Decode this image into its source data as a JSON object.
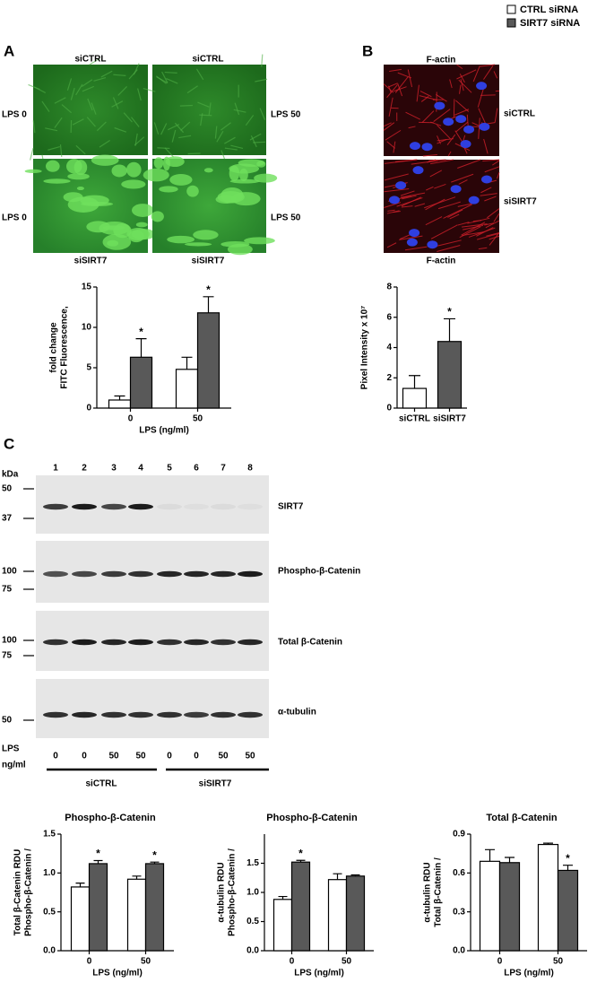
{
  "panel_labels": [
    "A",
    "B",
    "C"
  ],
  "panel_a": {
    "top_labels": [
      "siCTRL",
      "siCTRL"
    ],
    "bottom_labels": [
      "siSIRT7",
      "siSIRT7"
    ],
    "left_labels": [
      "LPS 0",
      "LPS 0"
    ],
    "right_labels": [
      "LPS 50",
      "LPS 50"
    ]
  },
  "panel_b": {
    "top_label": "F-actin",
    "bottom_label": "F-actin",
    "right_labels": [
      "siCTRL",
      "siSIRT7"
    ]
  },
  "panel_c": {
    "lanes": [
      1,
      2,
      3,
      4,
      5,
      6,
      7,
      8
    ],
    "kda": "kDa",
    "blots": [
      {
        "label": "SIRT7",
        "markers": [
          50,
          37
        ]
      },
      {
        "label": "Phospho-β-Catenin",
        "markers": [
          100,
          75
        ]
      },
      {
        "label": "Total β-Catenin",
        "markers": [
          100,
          75
        ]
      },
      {
        "label": "α-tubulin",
        "markers": [
          50
        ]
      }
    ],
    "lps_label": "LPS",
    "lps_unit": "ng/ml",
    "lps_values": [
      0,
      0,
      50,
      50,
      0,
      0,
      50,
      50
    ],
    "groups": [
      "siCTRL",
      "siSIRT7"
    ]
  },
  "chart_data": [
    {
      "type": "bar",
      "ylabel": [
        "FITC Fluorescence,",
        "fold change"
      ],
      "xlabel": "LPS (ng/ml)",
      "categories": [
        "0",
        "50"
      ],
      "ylim": [
        0,
        15
      ],
      "yticks": [
        0,
        5,
        10,
        15
      ],
      "series": [
        {
          "name": "CTRL siRNA",
          "color": "#ffffff",
          "values": [
            1.0,
            4.8
          ],
          "errors": [
            0.5,
            1.5
          ]
        },
        {
          "name": "SIRT7 siRNA",
          "color": "#595959",
          "values": [
            6.3,
            11.8
          ],
          "errors": [
            2.3,
            2.0
          ],
          "labels": [
            "*",
            "*"
          ]
        }
      ]
    },
    {
      "type": "bar",
      "ylabel": [
        "Pixel Intensity x 10⁷"
      ],
      "categories": [
        "siCTRL",
        "siSIRT7"
      ],
      "ylim": [
        0,
        8
      ],
      "yticks": [
        0,
        2,
        4,
        6,
        8
      ],
      "series": [
        {
          "colors": [
            "#ffffff",
            "#595959"
          ],
          "values": [
            1.3,
            4.4
          ],
          "errors": [
            0.85,
            1.5
          ],
          "labels": [
            null,
            "*"
          ]
        }
      ]
    },
    {
      "type": "bar",
      "title": "Phospho-β-Catenin",
      "ylabel": [
        "Phospho-β-Catenin /",
        "Total β-Catenin RDU"
      ],
      "xlabel": "LPS (ng/ml)",
      "categories": [
        "0",
        "50"
      ],
      "ylim": [
        0,
        1.5
      ],
      "yticks": [
        {
          "value": 0,
          "label": "0.0"
        },
        0.5,
        {
          "value": 1,
          "label": "1.0"
        },
        1.5
      ],
      "series": [
        {
          "color": "#ffffff",
          "values": [
            0.82,
            0.92
          ],
          "errors": [
            0.05,
            0.04
          ]
        },
        {
          "color": "#595959",
          "values": [
            1.12,
            1.12
          ],
          "errors": [
            0.04,
            0.02
          ],
          "labels": [
            "*",
            "*"
          ]
        }
      ]
    },
    {
      "type": "bar",
      "title": "Phospho-β-Catenin",
      "ylabel": [
        "Phospho-β-Catenin /",
        "α-tubulin RDU"
      ],
      "xlabel": "LPS (ng/ml)",
      "categories": [
        "0",
        "50"
      ],
      "ylim": [
        0,
        2
      ],
      "yticks": [
        {
          "value": 0,
          "label": "0.0"
        },
        0.5,
        {
          "value": 1,
          "label": "1.0"
        },
        1.5
      ],
      "series": [
        {
          "color": "#ffffff",
          "values": [
            0.88,
            1.22
          ],
          "errors": [
            0.05,
            0.1
          ]
        },
        {
          "color": "#595959",
          "values": [
            1.52,
            1.28
          ],
          "errors": [
            0.03,
            0.02
          ],
          "labels": [
            "*",
            null
          ]
        }
      ]
    },
    {
      "type": "bar",
      "title": "Total β-Catenin",
      "ylabel": [
        "Total β-Catenin /",
        "α-tubulin RDU"
      ],
      "xlabel": "LPS (ng/ml)",
      "categories": [
        "0",
        "50"
      ],
      "ylim": [
        0,
        0.9
      ],
      "yticks": [
        {
          "value": 0,
          "label": "0.0"
        },
        0.3,
        0.6,
        0.9
      ],
      "series": [
        {
          "color": "#ffffff",
          "values": [
            0.69,
            0.82
          ],
          "errors": [
            0.09,
            0.01
          ]
        },
        {
          "color": "#595959",
          "values": [
            0.68,
            0.62
          ],
          "errors": [
            0.04,
            0.04
          ],
          "labels": [
            null,
            "*"
          ]
        }
      ]
    }
  ]
}
